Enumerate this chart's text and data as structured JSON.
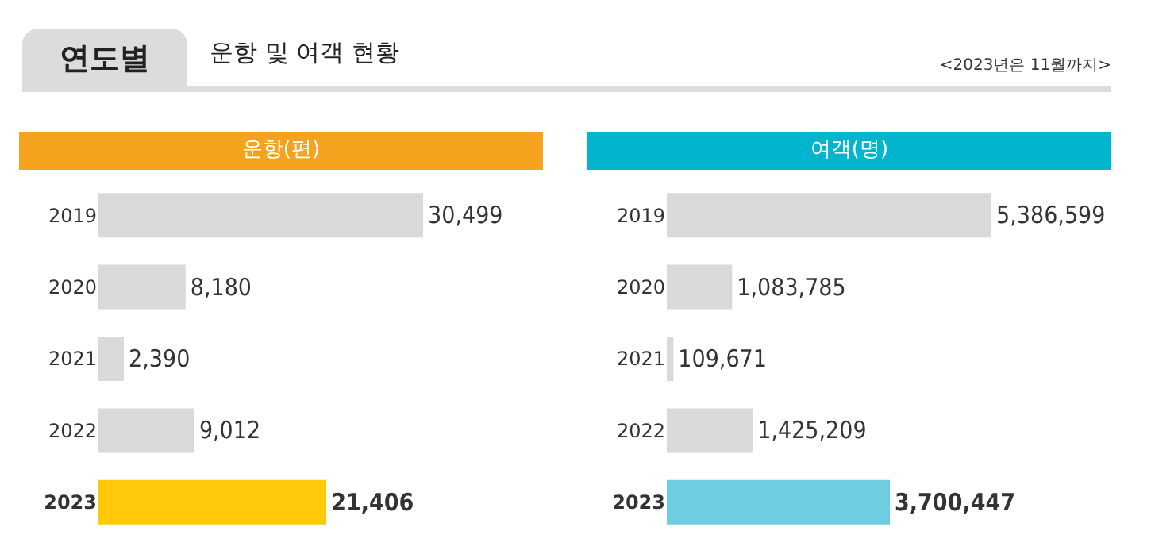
{
  "chart_data": [
    {
      "type": "bar",
      "orientation": "horizontal",
      "title": "운항(편)",
      "annotations": [
        "연도별",
        "운항 및 여객 현황",
        "<2023년은 11월까지>"
      ],
      "categories": [
        "2019",
        "2020",
        "2021",
        "2022",
        "2023"
      ],
      "values": [
        30499,
        8180,
        2390,
        9012,
        21406
      ],
      "value_labels": [
        "30,499",
        "8,180",
        "2,390",
        "9,012",
        "21,406"
      ],
      "colors": [
        "#d9d9d9",
        "#d9d9d9",
        "#d9d9d9",
        "#d9d9d9",
        "#ffc90a"
      ],
      "tick_labels": "y",
      "grid": false,
      "legend": false
    },
    {
      "type": "bar",
      "orientation": "horizontal",
      "title": "여객(명)",
      "categories": [
        "2019",
        "2020",
        "2021",
        "2022",
        "2023"
      ],
      "values": [
        5386599,
        1083785,
        109671,
        1425209,
        3700447
      ],
      "value_labels": [
        "5,386,599",
        "1,083,785",
        "109,671",
        "1,425,209",
        "3,700,447"
      ],
      "colors": [
        "#d9d9d9",
        "#d9d9d9",
        "#d9d9d9",
        "#d9d9d9",
        "#6ecde0"
      ],
      "tick_labels": "y",
      "grid": false,
      "legend": false
    }
  ]
}
